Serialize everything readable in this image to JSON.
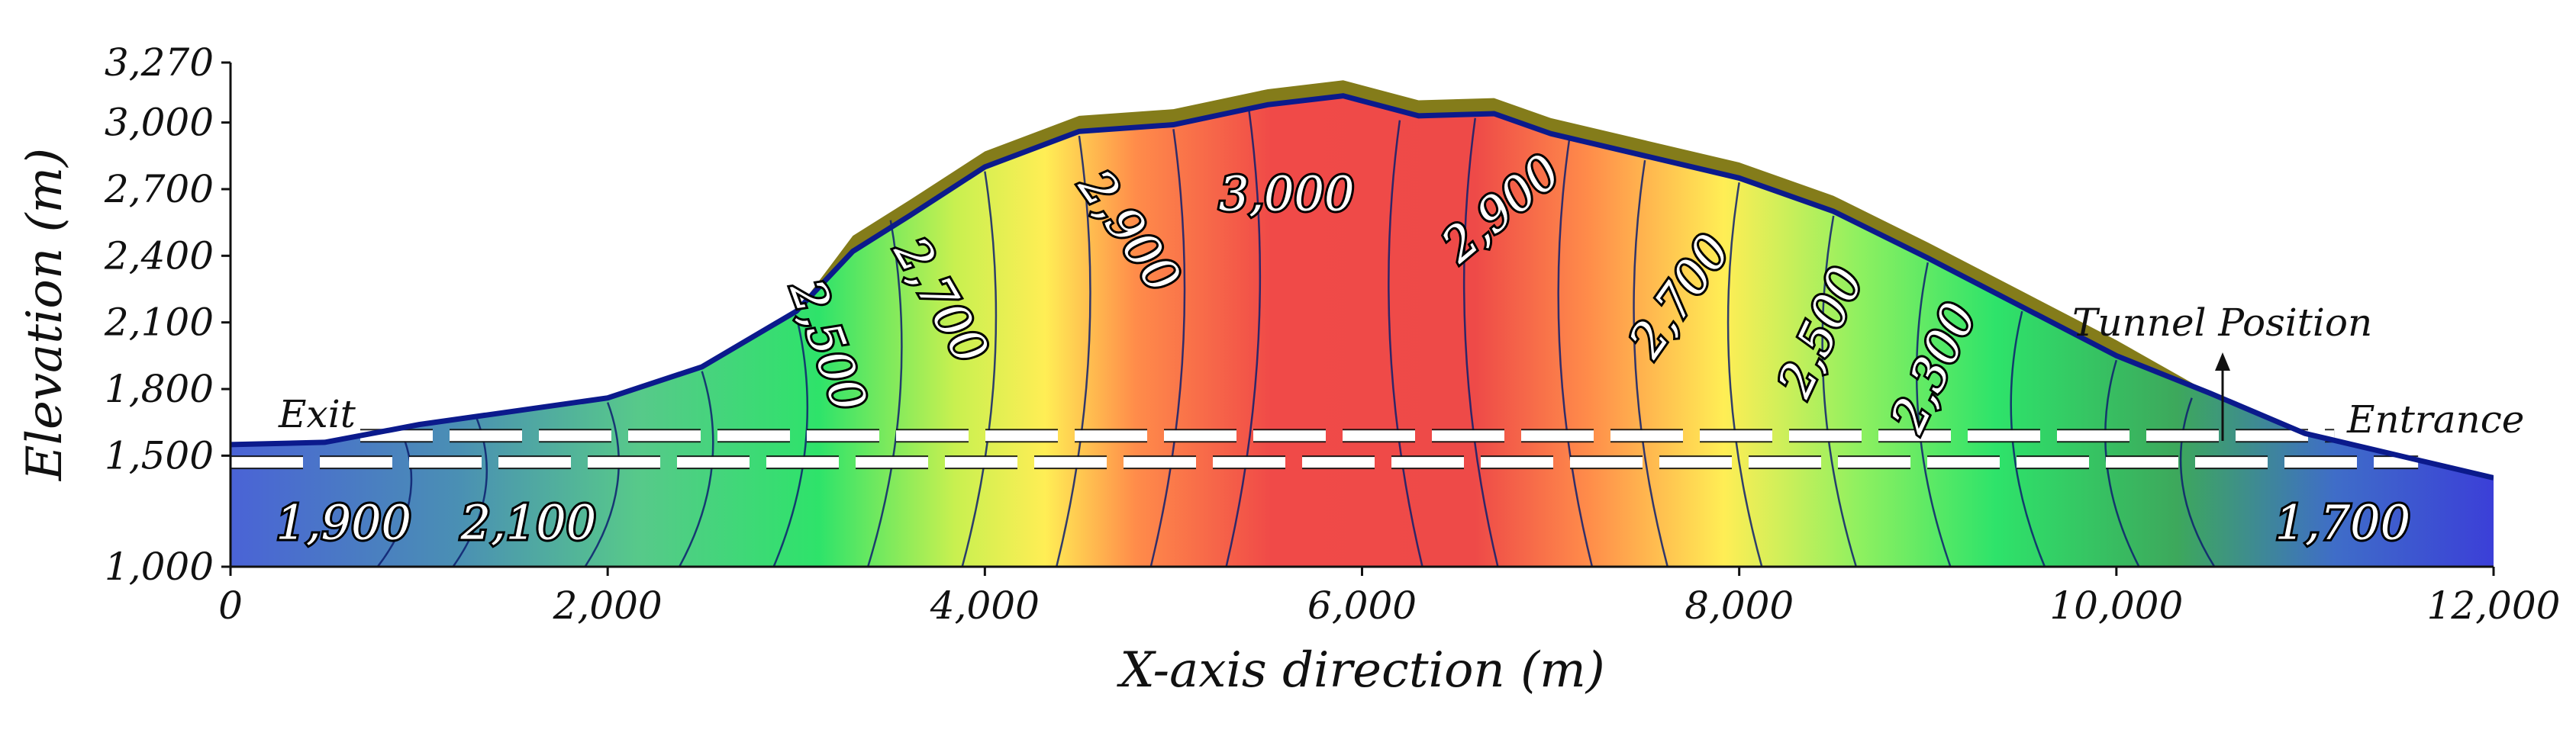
{
  "chart_data": {
    "type": "heatmap",
    "title": "",
    "xlabel": "X-axis direction (m)",
    "ylabel": "Elevation (m)",
    "xlim": [
      0,
      12000
    ],
    "ylim": [
      1000,
      3270
    ],
    "x_ticks": [
      0,
      2000,
      4000,
      6000,
      8000,
      10000,
      12000
    ],
    "x_tick_labels": [
      "0",
      "2,000",
      "4,000",
      "6,000",
      "8,000",
      "10,000",
      "12,000"
    ],
    "y_ticks": [
      1000,
      1500,
      1800,
      2100,
      2400,
      2700,
      3000,
      3270
    ],
    "y_tick_labels": [
      "1,000",
      "1,500",
      "1,800",
      "2,100",
      "2,400",
      "2,700",
      "3,000",
      "3,270"
    ],
    "surface_profile": [
      [
        0,
        1550
      ],
      [
        500,
        1560
      ],
      [
        1000,
        1640
      ],
      [
        1500,
        1700
      ],
      [
        2000,
        1760
      ],
      [
        2500,
        1900
      ],
      [
        3000,
        2150
      ],
      [
        3300,
        2420
      ],
      [
        3600,
        2580
      ],
      [
        4000,
        2800
      ],
      [
        4500,
        2960
      ],
      [
        5000,
        2990
      ],
      [
        5500,
        3080
      ],
      [
        5900,
        3120
      ],
      [
        6300,
        3030
      ],
      [
        6700,
        3040
      ],
      [
        7000,
        2950
      ],
      [
        7500,
        2850
      ],
      [
        8000,
        2750
      ],
      [
        8500,
        2600
      ],
      [
        9000,
        2390
      ],
      [
        9500,
        2170
      ],
      [
        10000,
        1950
      ],
      [
        10500,
        1780
      ],
      [
        11000,
        1600
      ],
      [
        11500,
        1500
      ],
      [
        12000,
        1400
      ]
    ],
    "tunnel": {
      "elevation_top": 1590,
      "elevation_bottom": 1470,
      "x_start": 0,
      "x_end": 11600
    },
    "contours": [
      {
        "label": "1,900",
        "x": 600,
        "y": 1180,
        "angle": 0
      },
      {
        "label": "2,100",
        "x": 1580,
        "y": 1180,
        "angle": 0
      },
      {
        "label": "2,500",
        "x": 3150,
        "y": 1990,
        "angle": 70
      },
      {
        "label": "2,700",
        "x": 3750,
        "y": 2190,
        "angle": 60
      },
      {
        "label": "2,900",
        "x": 4750,
        "y": 2500,
        "angle": 55
      },
      {
        "label": "3,000",
        "x": 5600,
        "y": 2660,
        "angle": 0
      },
      {
        "label": "2,900",
        "x": 6750,
        "y": 2600,
        "angle": -40
      },
      {
        "label": "2,700",
        "x": 7700,
        "y": 2210,
        "angle": -55
      },
      {
        "label": "2,500",
        "x": 8450,
        "y": 2050,
        "angle": -65
      },
      {
        "label": "2,300",
        "x": 9050,
        "y": 1890,
        "angle": -65
      },
      {
        "label": "1,700",
        "x": 11200,
        "y": 1180,
        "angle": 0
      }
    ],
    "annotations": {
      "exit": "Exit",
      "entrance": "Entrance",
      "tunnel_position": "Tunnel Position"
    },
    "colors": {
      "low": "#3f53d8",
      "mid": "#27e36a",
      "high": "#f04a48",
      "surface_layer": "#847c1a",
      "surface_line": "#0b1a8c"
    }
  }
}
